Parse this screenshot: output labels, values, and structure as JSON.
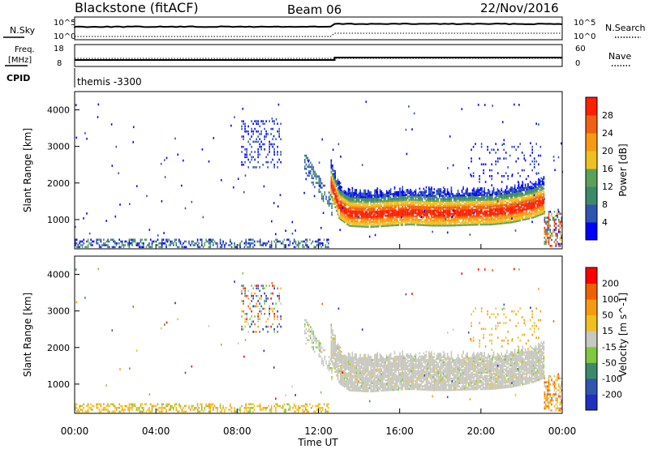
{
  "header": {
    "station": "Blackstone (fitACF)",
    "beam": "Beam 06",
    "date": "22/Nov/2016"
  },
  "strip_labels": {
    "nsky": "N.Sky",
    "nsearch": "N.Search",
    "freq_line1": "Freq.",
    "freq_line2": "[MHz]",
    "nave": "Nave",
    "cpid": "CPID",
    "cpid_value": "themis -3300"
  },
  "strip_ticks": {
    "noise_left": [
      "10^5",
      "10^0"
    ],
    "noise_right": [
      "10^5",
      "10^0"
    ],
    "freq_left": [
      "18",
      "8"
    ],
    "nave_right": [
      "60",
      "0"
    ]
  },
  "colors": {
    "power": [
      "#0000ff",
      "#2f55b0",
      "#3d8a6a",
      "#5aa25a",
      "#f0c020",
      "#f89a10",
      "#f06010",
      "#ff2000"
    ],
    "velocity": [
      "#ff0000",
      "#f06000",
      "#f89a10",
      "#f0c020",
      "#c8c8c0",
      "#80c840",
      "#3d8a6a",
      "#2f55b0",
      "#2030c0"
    ]
  },
  "chart_data": [
    {
      "type": "heatmap",
      "quantity": "power",
      "xlabel": "",
      "ylabel": "Slant Range [km]",
      "ylim": [
        200,
        4500
      ],
      "yticks": [
        "1000",
        "2000",
        "3000",
        "4000"
      ],
      "colorbar": {
        "label": "Power [dB]",
        "ticks": [
          "4",
          "8",
          "12",
          "16",
          "20",
          "24",
          "28"
        ],
        "range": [
          0,
          32
        ]
      },
      "echo_band": [
        {
          "hour": 12.6,
          "center_km": 1900
        },
        {
          "hour": 13.0,
          "center_km": 1300
        },
        {
          "hour": 13.5,
          "center_km": 1100
        },
        {
          "hour": 14.5,
          "center_km": 1070
        },
        {
          "hour": 15.5,
          "center_km": 1110
        },
        {
          "hour": 16.5,
          "center_km": 1140
        },
        {
          "hour": 17.5,
          "center_km": 1110
        },
        {
          "hour": 18.5,
          "center_km": 1110
        },
        {
          "hour": 19.5,
          "center_km": 1130
        },
        {
          "hour": 20.5,
          "center_km": 1140
        },
        {
          "hour": 21.5,
          "center_km": 1200
        },
        {
          "hour": 22.5,
          "center_km": 1320
        },
        {
          "hour": 23.1,
          "center_km": 1450
        }
      ]
    },
    {
      "type": "heatmap",
      "quantity": "velocity",
      "xlabel": "Time UT",
      "ylabel": "Slant Range [km]",
      "ylim": [
        200,
        4500
      ],
      "yticks": [
        "1000",
        "2000",
        "3000",
        "4000"
      ],
      "xticks": [
        "00:00",
        "04:00",
        "08:00",
        "12:00",
        "16:00",
        "20:00",
        "00:00"
      ],
      "colorbar": {
        "label": "Velocity [m s^-1]",
        "ticks": [
          "200",
          "100",
          "50",
          "15",
          "-15",
          "-50",
          "-100",
          "-200"
        ]
      }
    }
  ]
}
